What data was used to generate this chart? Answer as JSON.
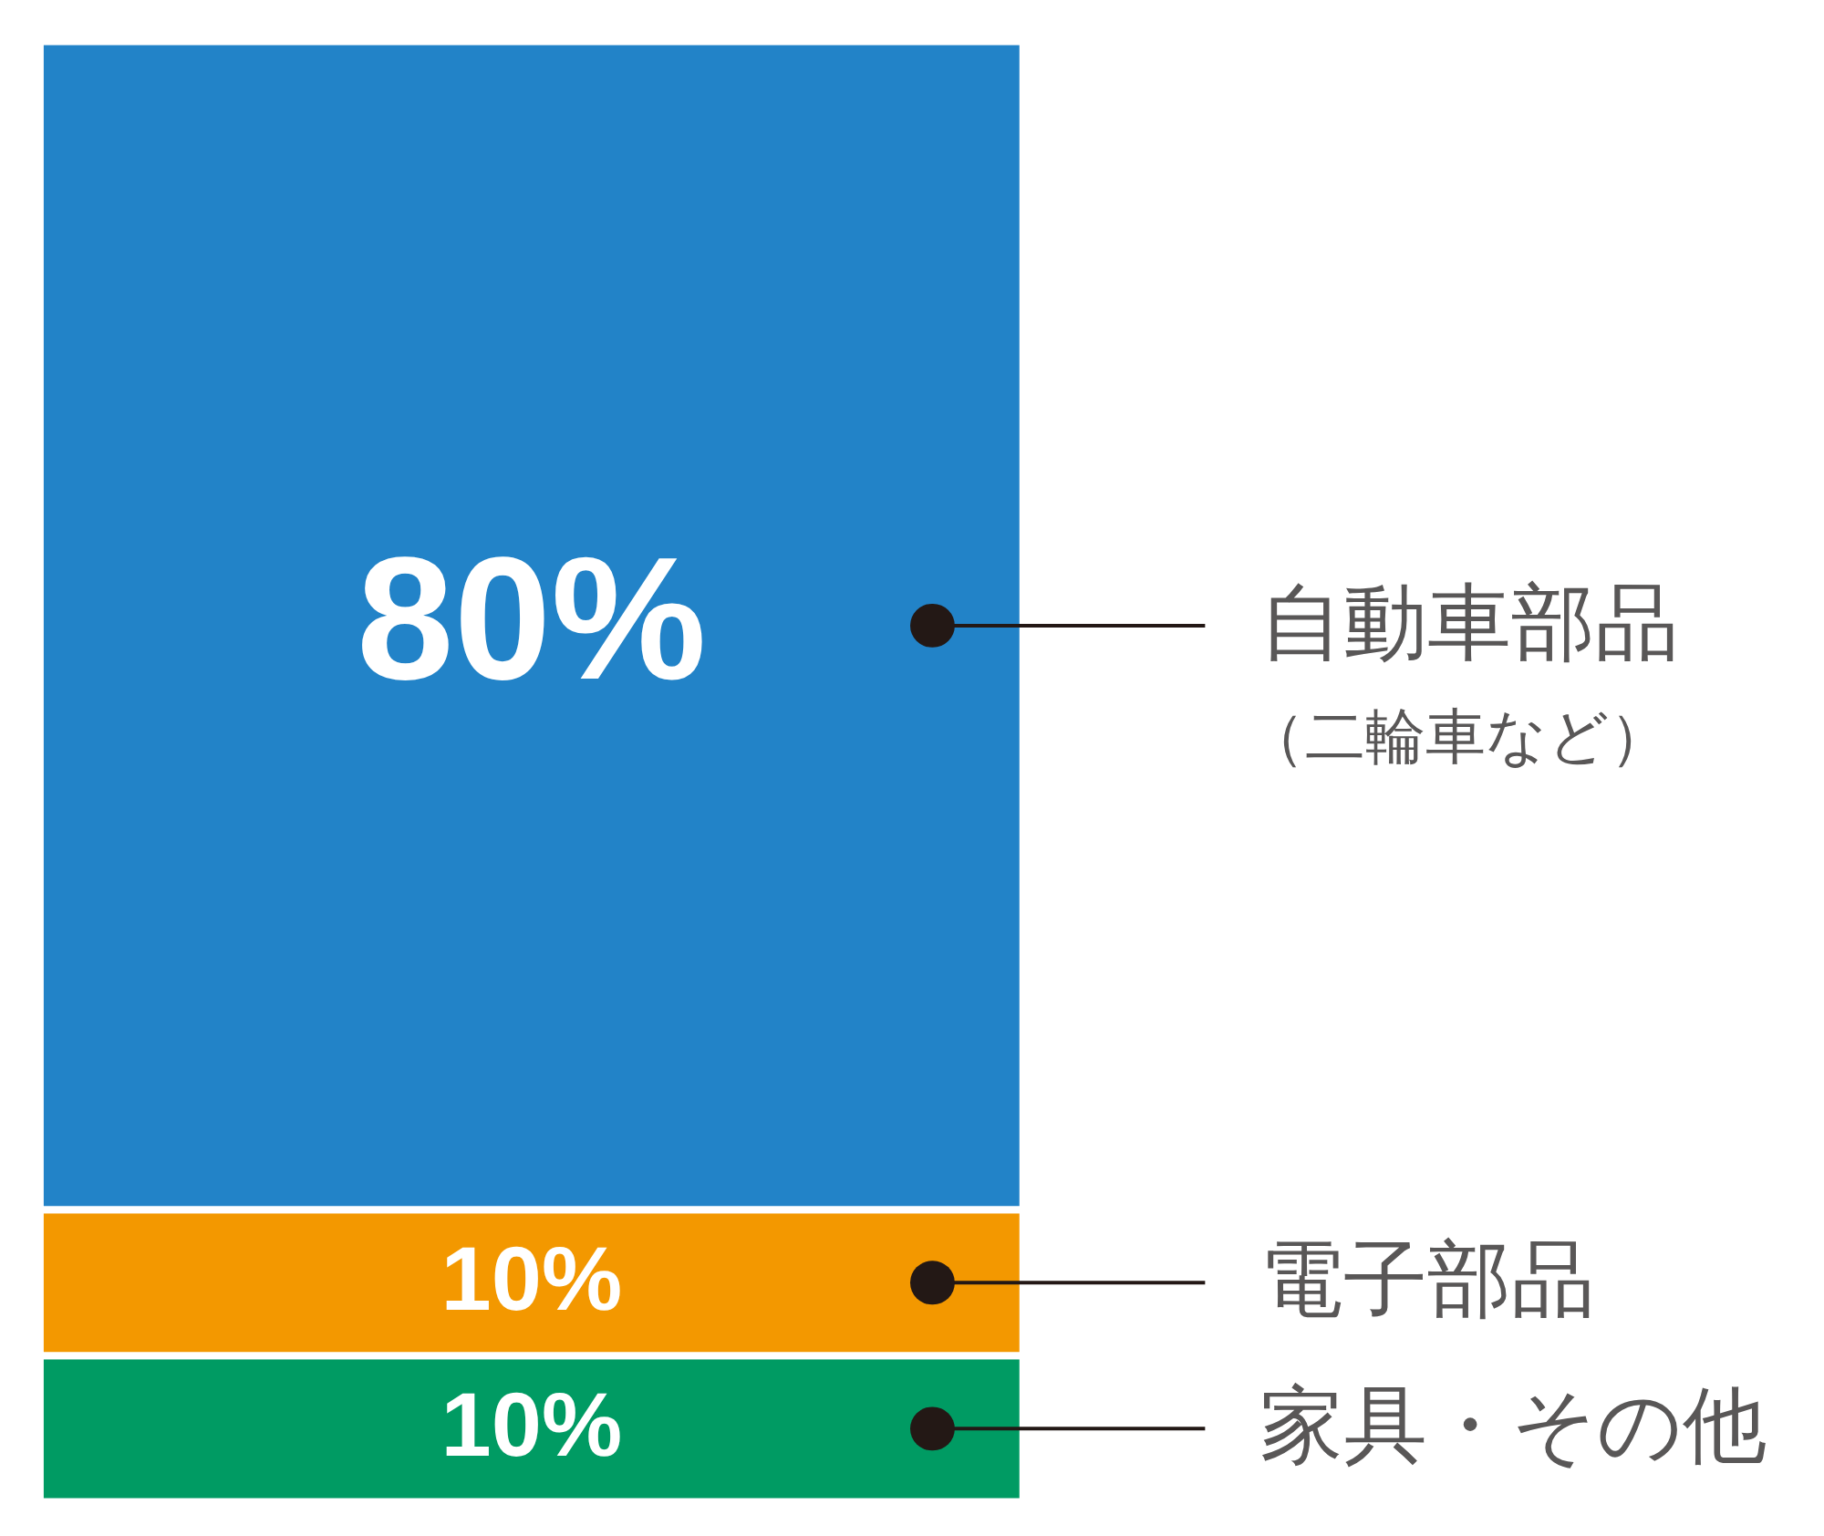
{
  "chart_data": {
    "type": "bar",
    "stacked": true,
    "categories": [
      null
    ],
    "series": [
      {
        "name": "家具・その他",
        "color": "#009b63",
        "values": [
          10
        ],
        "value_labels": [
          "10%"
        ]
      },
      {
        "name": "電子部品",
        "color": "#f39800",
        "values": [
          10
        ],
        "value_labels": [
          "10%"
        ]
      },
      {
        "name": "自動車部品",
        "color": "#2283c8",
        "values": [
          80
        ],
        "value_labels": [
          "80%"
        ]
      }
    ],
    "annotations": [
      "（二輪車など）"
    ],
    "tick_labels": false
  }
}
